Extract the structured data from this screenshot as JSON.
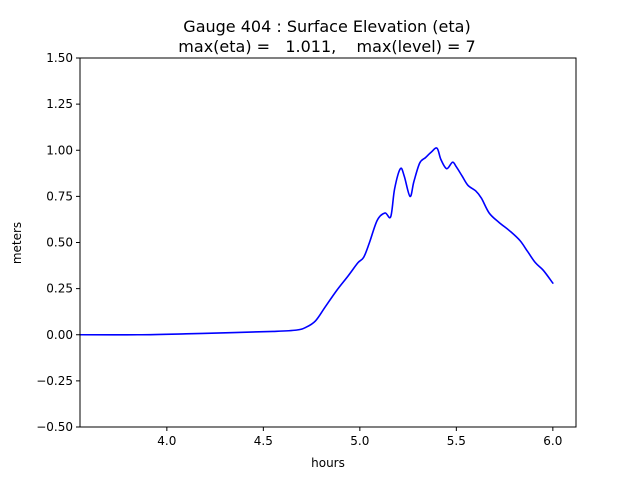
{
  "chart_data": {
    "type": "line",
    "title": "Gauge 404 : Surface Elevation (eta)",
    "subtitle": "max(eta) =   1.011,    max(level) = 7",
    "xlabel": "hours",
    "ylabel": "meters",
    "xlim": [
      3.55,
      6.12
    ],
    "ylim": [
      -0.5,
      1.5
    ],
    "x_ticks": [
      4.0,
      4.5,
      5.0,
      5.5,
      6.0
    ],
    "x_tick_labels": [
      "4.0",
      "4.5",
      "5.0",
      "5.5",
      "6.0"
    ],
    "y_ticks": [
      -0.5,
      -0.25,
      0.0,
      0.25,
      0.5,
      0.75,
      1.0,
      1.25,
      1.5
    ],
    "y_tick_labels": [
      "−0.50",
      "−0.25",
      "0.00",
      "0.25",
      "0.50",
      "0.75",
      "1.00",
      "1.25",
      "1.50"
    ],
    "grid": false,
    "series": [
      {
        "name": "eta",
        "color": "#0000ff",
        "x": [
          3.55,
          3.85,
          4.1,
          4.35,
          4.55,
          4.67,
          4.72,
          4.77,
          4.82,
          4.88,
          4.94,
          4.99,
          5.02,
          5.05,
          5.09,
          5.13,
          5.16,
          5.18,
          5.21,
          5.23,
          5.26,
          5.28,
          5.31,
          5.34,
          5.37,
          5.4,
          5.42,
          5.45,
          5.48,
          5.5,
          5.53,
          5.56,
          5.6,
          5.63,
          5.67,
          5.72,
          5.78,
          5.83,
          5.87,
          5.91,
          5.95,
          6.0
        ],
        "values": [
          0.0,
          0.0,
          0.005,
          0.012,
          0.018,
          0.025,
          0.04,
          0.075,
          0.15,
          0.24,
          0.32,
          0.39,
          0.42,
          0.5,
          0.62,
          0.66,
          0.64,
          0.79,
          0.9,
          0.86,
          0.75,
          0.83,
          0.93,
          0.96,
          0.99,
          1.011,
          0.95,
          0.9,
          0.935,
          0.91,
          0.86,
          0.81,
          0.78,
          0.74,
          0.66,
          0.61,
          0.56,
          0.51,
          0.45,
          0.39,
          0.35,
          0.28
        ]
      }
    ]
  }
}
